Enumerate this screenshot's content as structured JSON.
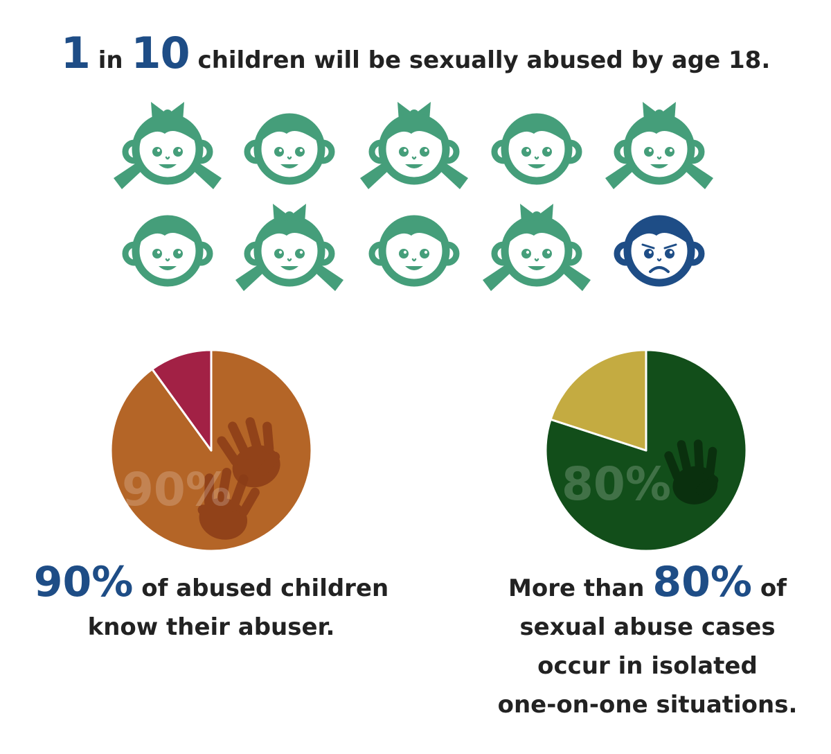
{
  "headline": {
    "num1": "1",
    "word1": "in",
    "num2": "10",
    "rest": "children will be sexually abused by age 18."
  },
  "faces": {
    "row1": [
      "girl",
      "boy",
      "girl",
      "boy",
      "girl"
    ],
    "row2": [
      "boy",
      "girl",
      "boy",
      "girl",
      "sad-boy"
    ],
    "colors": {
      "happy": "#459e7a",
      "sad": "#1e4d86"
    }
  },
  "chart_data": [
    {
      "type": "pie",
      "slices": [
        {
          "value": 90,
          "color": "#b46527"
        },
        {
          "value": 10,
          "color": "#a22145"
        }
      ],
      "overlay_label": "90%",
      "decoration": "hand-prints-icon"
    },
    {
      "type": "pie",
      "slices": [
        {
          "value": 80,
          "color": "#124e1a"
        },
        {
          "value": 20,
          "color": "#c4ab41"
        }
      ],
      "overlay_label": "80%",
      "decoration": "hand-print-icon"
    }
  ],
  "captions": {
    "left": {
      "pct": "90%",
      "line1": "of abused children",
      "line2": "know their abuser."
    },
    "right": {
      "prefix": "More than",
      "pct": "80%",
      "suffix": "of",
      "line2": "sexual abuse cases",
      "line3": "occur in isolated",
      "line4": "one-on-one situations."
    }
  }
}
